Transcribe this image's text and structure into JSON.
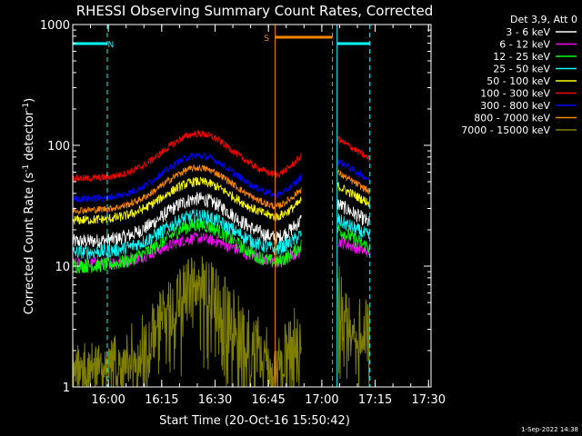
{
  "chart_data": {
    "type": "line",
    "title": "RHESSI Observing Summary Count Rates, Corrected",
    "xlabel": "Start Time (20-Oct-16 15:50:42)",
    "ylabel_main": "Corrected Count Rate (s",
    "ylabel_sup1": "-1",
    "ylabel_mid": " detector",
    "ylabel_sup2": "-1",
    "ylabel_end": ")",
    "yscale": "log",
    "ylim": [
      1,
      1000
    ],
    "xlim_minutes": [
      -0.7,
      100
    ],
    "x_ticks": [
      {
        "label": "16:00",
        "minutes": 9.3
      },
      {
        "label": "16:15",
        "minutes": 24.3
      },
      {
        "label": "16:30",
        "minutes": 39.3
      },
      {
        "label": "16:45",
        "minutes": 54.3
      },
      {
        "label": "17:00",
        "minutes": 69.3
      },
      {
        "label": "17:15",
        "minutes": 84.3
      },
      {
        "label": "17:30",
        "minutes": 99.3
      }
    ],
    "y_ticks": [
      {
        "label": "1",
        "value": 1
      },
      {
        "label": "10",
        "value": 10
      },
      {
        "label": "100",
        "value": 100
      },
      {
        "label": "1000",
        "value": 1000
      }
    ],
    "legend_header": "Det 3,9, Att 0",
    "legend_position": "right",
    "series": [
      {
        "name": "3 - 6 keV",
        "color": "#ffffff",
        "base": 16,
        "peak": 36,
        "noise": 0.06
      },
      {
        "name": "6 - 12 keV",
        "color": "#ff00ff",
        "base": 10.5,
        "peak": 17,
        "noise": 0.05
      },
      {
        "name": "12 - 25 keV",
        "color": "#00ff00",
        "base": 10,
        "peak": 22,
        "noise": 0.06
      },
      {
        "name": "25 - 50 keV",
        "color": "#00ffff",
        "base": 13,
        "peak": 26,
        "noise": 0.06
      },
      {
        "name": "50 - 100 keV",
        "color": "#ffff00",
        "base": 24,
        "peak": 50,
        "noise": 0.04
      },
      {
        "name": "100 - 300 keV",
        "color": "#ff0000",
        "base": 53,
        "peak": 125,
        "noise": 0.03
      },
      {
        "name": "300 - 800 keV",
        "color": "#0000ff",
        "base": 36,
        "peak": 82,
        "noise": 0.03
      },
      {
        "name": "800 - 7000 keV",
        "color": "#ff8800",
        "base": 29,
        "peak": 65,
        "noise": 0.03
      },
      {
        "name": "7000 - 15000 keV",
        "color": "#808000",
        "base": 1.5,
        "peak": 7,
        "noise": 0.25
      }
    ],
    "flag_bars": [
      {
        "label": "N",
        "color": "#00ffff",
        "start_minutes": -0.7,
        "end_minutes": 9.0,
        "label_minutes": 10.0
      },
      {
        "label": "S",
        "color": "#ff8800",
        "start_minutes": 56.2,
        "end_minutes": 72.3,
        "label_minutes": 53.8
      },
      {
        "label": "",
        "color": "#00ffff",
        "start_minutes": 73.6,
        "end_minutes": 82.8,
        "label_minutes": 0
      }
    ],
    "vlines": [
      {
        "minutes": -0.7,
        "color": "#00ffff",
        "style": "solid"
      },
      {
        "minutes": 9.0,
        "color": "#00ffff",
        "style": "dashed"
      },
      {
        "minutes": 56.2,
        "color": "#ff8800",
        "style": "solid"
      },
      {
        "minutes": 72.3,
        "color": "#ff8800",
        "style": "dashed"
      },
      {
        "minutes": 73.6,
        "color": "#00ffff",
        "style": "solid"
      },
      {
        "minutes": 82.8,
        "color": "#00ffff",
        "style": "dashed"
      }
    ],
    "segments_minutes": [
      [
        -0.7,
        63.5
      ],
      [
        73.6,
        82.8
      ]
    ],
    "hump_center_minutes": 34.6,
    "footer_date": "1-Sep-2022 14:38"
  }
}
